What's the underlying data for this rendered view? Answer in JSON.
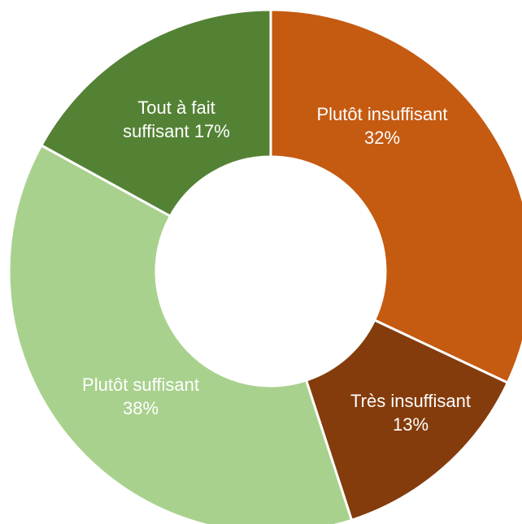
{
  "chart_data": {
    "type": "donut",
    "categories": [
      "Plutôt insuffisant",
      "Très insuffisant",
      "Plutôt suffisant",
      "Tout à fait suffisant"
    ],
    "values": [
      32,
      13,
      38,
      17
    ],
    "value_labels": [
      "32%",
      "13%",
      "38%",
      "17%"
    ],
    "colors": [
      "#c55a11",
      "#843c0c",
      "#a9d18e",
      "#548235"
    ]
  }
}
